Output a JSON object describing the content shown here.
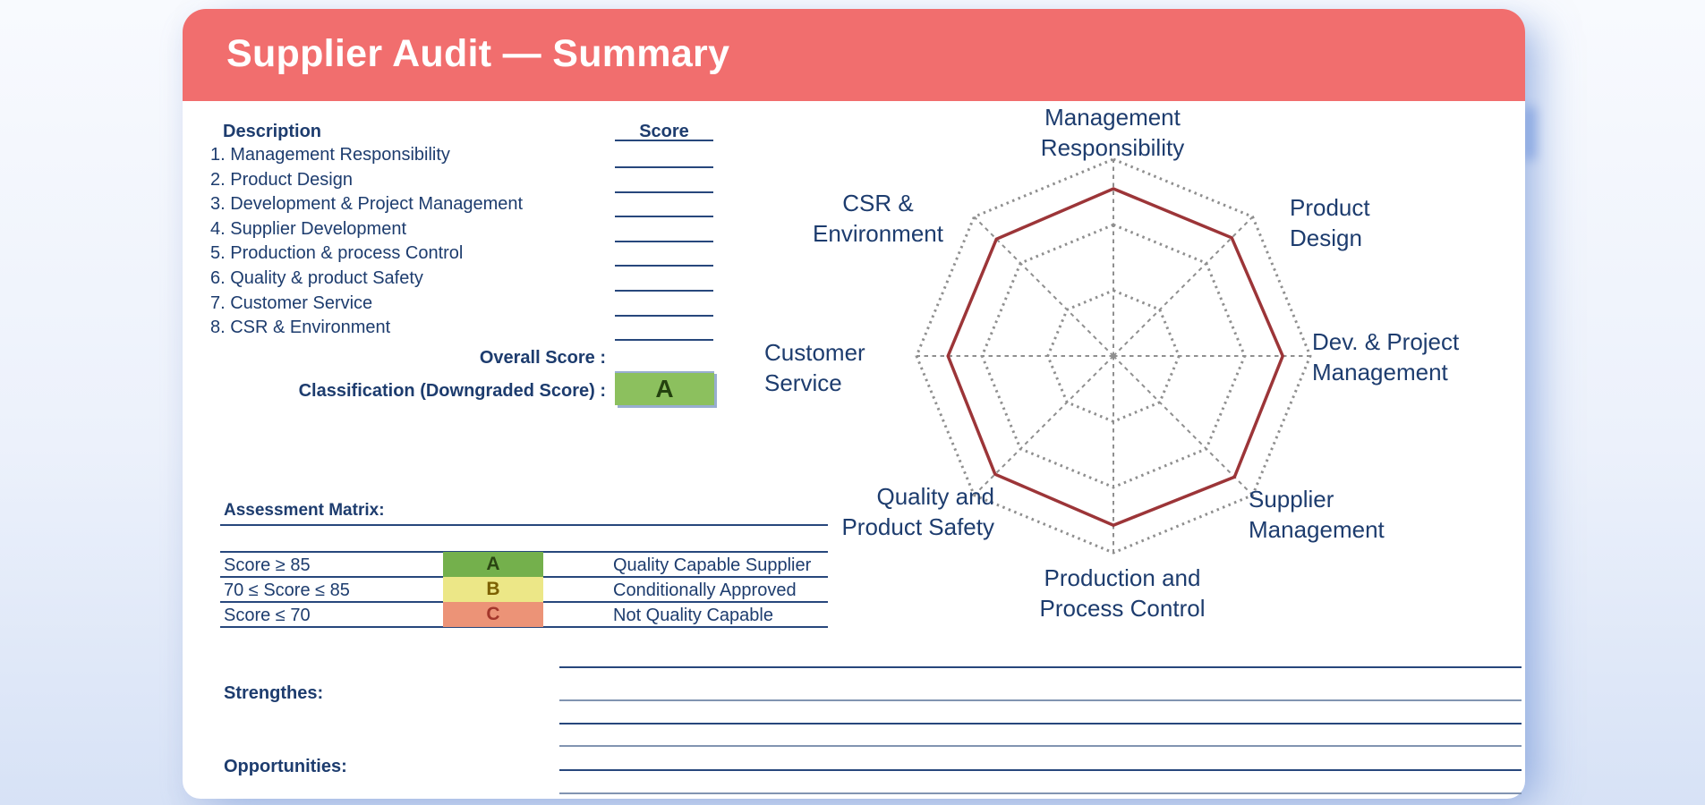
{
  "header": {
    "title": "Supplier Audit — Summary"
  },
  "scores_table": {
    "description_header": "Description",
    "score_header": "Score",
    "items": [
      "1. Management Responsibility",
      "2. Product Design",
      "3. Development & Project Management",
      "4. Supplier Development",
      "5. Production & process Control",
      "6. Quality & product Safety",
      "7. Customer Service",
      "8. CSR & Environment"
    ],
    "overall_label": "Overall Score :",
    "classification_label": "Classification (Downgraded Score) :",
    "classification_value": "A"
  },
  "assessment_matrix": {
    "title": "Assessment Matrix:",
    "rows": [
      {
        "range": "Score ≥ 85",
        "grade": "A",
        "meaning": "Quality Capable Supplier",
        "bg": "#74b04c",
        "fg": "#2a4512"
      },
      {
        "range": "70 ≤ Score ≤ 85",
        "grade": "B",
        "meaning": "Conditionally Approved",
        "bg": "#ece787",
        "fg": "#7c6000"
      },
      {
        "range": "Score ≤ 70",
        "grade": "C",
        "meaning": "Not Quality Capable",
        "bg": "#ec9377",
        "fg": "#a3362b"
      }
    ]
  },
  "notes": {
    "strengths_label": "Strengthes:",
    "opportunities_label": "Opportunities:"
  },
  "radar_labels": [
    {
      "line1": "Management",
      "line2": "Responsibility"
    },
    {
      "line1": "Product",
      "line2": "Design"
    },
    {
      "line1": "Dev. & Project",
      "line2": "Management"
    },
    {
      "line1": "Supplier",
      "line2": "Management"
    },
    {
      "line1": "Production and",
      "line2": "Process Control"
    },
    {
      "line1": "Quality and",
      "line2": "Product Safety"
    },
    {
      "line1": "Customer",
      "line2": "Service"
    },
    {
      "line1": "CSR &",
      "line2": "Environment"
    }
  ],
  "chart_data": {
    "type": "radar",
    "axes": [
      "Management Responsibility",
      "Product Design",
      "Dev. & Project Management",
      "Supplier Management",
      "Production and Process Control",
      "Quality and Product Safety",
      "Customer Service",
      "CSR & Environment"
    ],
    "values": [
      85,
      85,
      86,
      87,
      86,
      85,
      84,
      84
    ],
    "max": 100,
    "rings": [
      33.3,
      66.7,
      100
    ],
    "grid_on": true,
    "legend": "none",
    "grid_color": "#8f8f8f",
    "series_color": "#9c3538"
  },
  "colors": {
    "header_accent": "#f16e6e",
    "navy_text": "#1d3c6e",
    "classification_bg": "#8cc05e",
    "classification_fg": "#24420f"
  }
}
